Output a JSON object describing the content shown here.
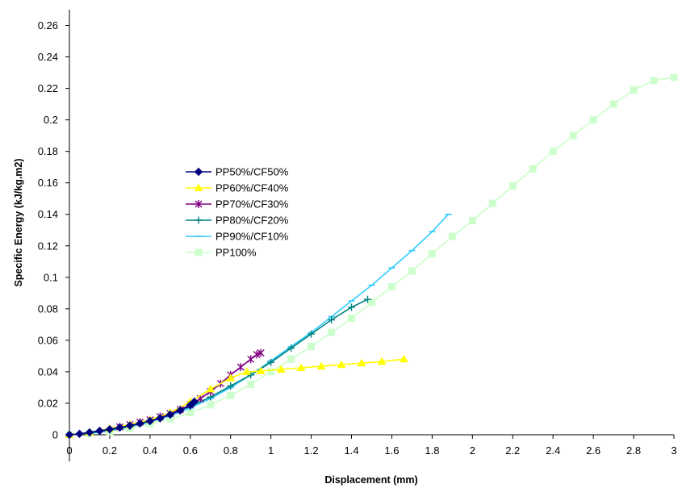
{
  "chart_data": {
    "type": "line",
    "title": "",
    "xlabel": "Displacement (mm)",
    "ylabel": "Specific Energy (kJ/kg.m2)",
    "xlim": [
      0,
      3
    ],
    "ylim": [
      0,
      0.27
    ],
    "x_ticks": [
      "0",
      "0.2",
      "0.4",
      "0.6",
      "0.8",
      "1",
      "1.2",
      "1.4",
      "1.6",
      "1.8",
      "2",
      "2.2",
      "2.4",
      "2.6",
      "2.8",
      "3"
    ],
    "y_ticks": [
      "0",
      "0.02",
      "0.04",
      "0.06",
      "0.08",
      "0.1",
      "0.12",
      "0.14",
      "0.16",
      "0.18",
      "0.2",
      "0.22",
      "0.24",
      "0.26"
    ],
    "grid": false,
    "legend_position": "center-left",
    "series": [
      {
        "name": "PP50%/CF50%",
        "color": "#000080",
        "marker": "diamond",
        "points": [
          [
            0,
            0
          ],
          [
            0.05,
            0.0006
          ],
          [
            0.1,
            0.0015
          ],
          [
            0.15,
            0.0025
          ],
          [
            0.2,
            0.0035
          ],
          [
            0.25,
            0.0046
          ],
          [
            0.3,
            0.0058
          ],
          [
            0.35,
            0.0072
          ],
          [
            0.4,
            0.0087
          ],
          [
            0.45,
            0.0105
          ],
          [
            0.5,
            0.0128
          ],
          [
            0.55,
            0.0155
          ],
          [
            0.6,
            0.0188
          ],
          [
            0.62,
            0.021
          ]
        ]
      },
      {
        "name": "PP60%/CF40%",
        "color": "#FFFF00",
        "marker": "triangle",
        "points": [
          [
            0,
            0
          ],
          [
            0.1,
            0.0015
          ],
          [
            0.2,
            0.004
          ],
          [
            0.3,
            0.0065
          ],
          [
            0.4,
            0.0095
          ],
          [
            0.5,
            0.014
          ],
          [
            0.6,
            0.021
          ],
          [
            0.7,
            0.029
          ],
          [
            0.8,
            0.036
          ],
          [
            0.88,
            0.04
          ],
          [
            0.95,
            0.0405
          ],
          [
            1.05,
            0.0415
          ],
          [
            1.15,
            0.0425
          ],
          [
            1.25,
            0.0435
          ],
          [
            1.35,
            0.0445
          ],
          [
            1.45,
            0.0455
          ],
          [
            1.55,
            0.0465
          ],
          [
            1.66,
            0.048
          ]
        ]
      },
      {
        "name": "PP70%/CF30%",
        "color": "#800080",
        "marker": "asterisk",
        "points": [
          [
            0.25,
            0.005
          ],
          [
            0.3,
            0.0065
          ],
          [
            0.35,
            0.008
          ],
          [
            0.4,
            0.0095
          ],
          [
            0.45,
            0.0115
          ],
          [
            0.5,
            0.0135
          ],
          [
            0.55,
            0.016
          ],
          [
            0.6,
            0.019
          ],
          [
            0.65,
            0.023
          ],
          [
            0.7,
            0.0275
          ],
          [
            0.75,
            0.0325
          ],
          [
            0.8,
            0.038
          ],
          [
            0.85,
            0.043
          ],
          [
            0.9,
            0.048
          ],
          [
            0.93,
            0.051
          ],
          [
            0.95,
            0.052
          ]
        ]
      },
      {
        "name": "PP80%/CF20%",
        "color": "#008080",
        "marker": "plus",
        "points": [
          [
            0,
            0
          ],
          [
            0.1,
            0.001
          ],
          [
            0.2,
            0.003
          ],
          [
            0.3,
            0.0055
          ],
          [
            0.4,
            0.009
          ],
          [
            0.5,
            0.013
          ],
          [
            0.6,
            0.018
          ],
          [
            0.7,
            0.024
          ],
          [
            0.8,
            0.031
          ],
          [
            0.9,
            0.038
          ],
          [
            1.0,
            0.046
          ],
          [
            1.1,
            0.055
          ],
          [
            1.2,
            0.064
          ],
          [
            1.3,
            0.073
          ],
          [
            1.4,
            0.081
          ],
          [
            1.48,
            0.086
          ]
        ]
      },
      {
        "name": "PP90%/CF10%",
        "color": "#33CCFF",
        "marker": "dash",
        "points": [
          [
            0,
            0
          ],
          [
            0.1,
            0.0008
          ],
          [
            0.2,
            0.0025
          ],
          [
            0.3,
            0.005
          ],
          [
            0.4,
            0.008
          ],
          [
            0.5,
            0.012
          ],
          [
            0.6,
            0.017
          ],
          [
            0.7,
            0.023
          ],
          [
            0.8,
            0.03
          ],
          [
            0.9,
            0.038
          ],
          [
            1.0,
            0.047
          ],
          [
            1.1,
            0.056
          ],
          [
            1.2,
            0.065
          ],
          [
            1.3,
            0.075
          ],
          [
            1.4,
            0.085
          ],
          [
            1.5,
            0.095
          ],
          [
            1.6,
            0.106
          ],
          [
            1.7,
            0.117
          ],
          [
            1.8,
            0.129
          ],
          [
            1.88,
            0.14
          ]
        ]
      },
      {
        "name": "PP100%",
        "color": "#CCFFCC",
        "marker": "square",
        "points": [
          [
            0,
            0
          ],
          [
            0.1,
            0.001
          ],
          [
            0.2,
            0.002
          ],
          [
            0.3,
            0.004
          ],
          [
            0.4,
            0.007
          ],
          [
            0.5,
            0.01
          ],
          [
            0.6,
            0.014
          ],
          [
            0.7,
            0.019
          ],
          [
            0.8,
            0.025
          ],
          [
            0.9,
            0.032
          ],
          [
            1.0,
            0.04
          ],
          [
            1.1,
            0.048
          ],
          [
            1.2,
            0.056
          ],
          [
            1.3,
            0.065
          ],
          [
            1.4,
            0.074
          ],
          [
            1.5,
            0.084
          ],
          [
            1.6,
            0.094
          ],
          [
            1.7,
            0.104
          ],
          [
            1.8,
            0.115
          ],
          [
            1.9,
            0.126
          ],
          [
            2.0,
            0.136
          ],
          [
            2.1,
            0.147
          ],
          [
            2.2,
            0.158
          ],
          [
            2.3,
            0.169
          ],
          [
            2.4,
            0.18
          ],
          [
            2.5,
            0.19
          ],
          [
            2.6,
            0.2
          ],
          [
            2.7,
            0.21
          ],
          [
            2.8,
            0.219
          ],
          [
            2.9,
            0.225
          ],
          [
            3.0,
            0.227
          ]
        ]
      }
    ]
  }
}
